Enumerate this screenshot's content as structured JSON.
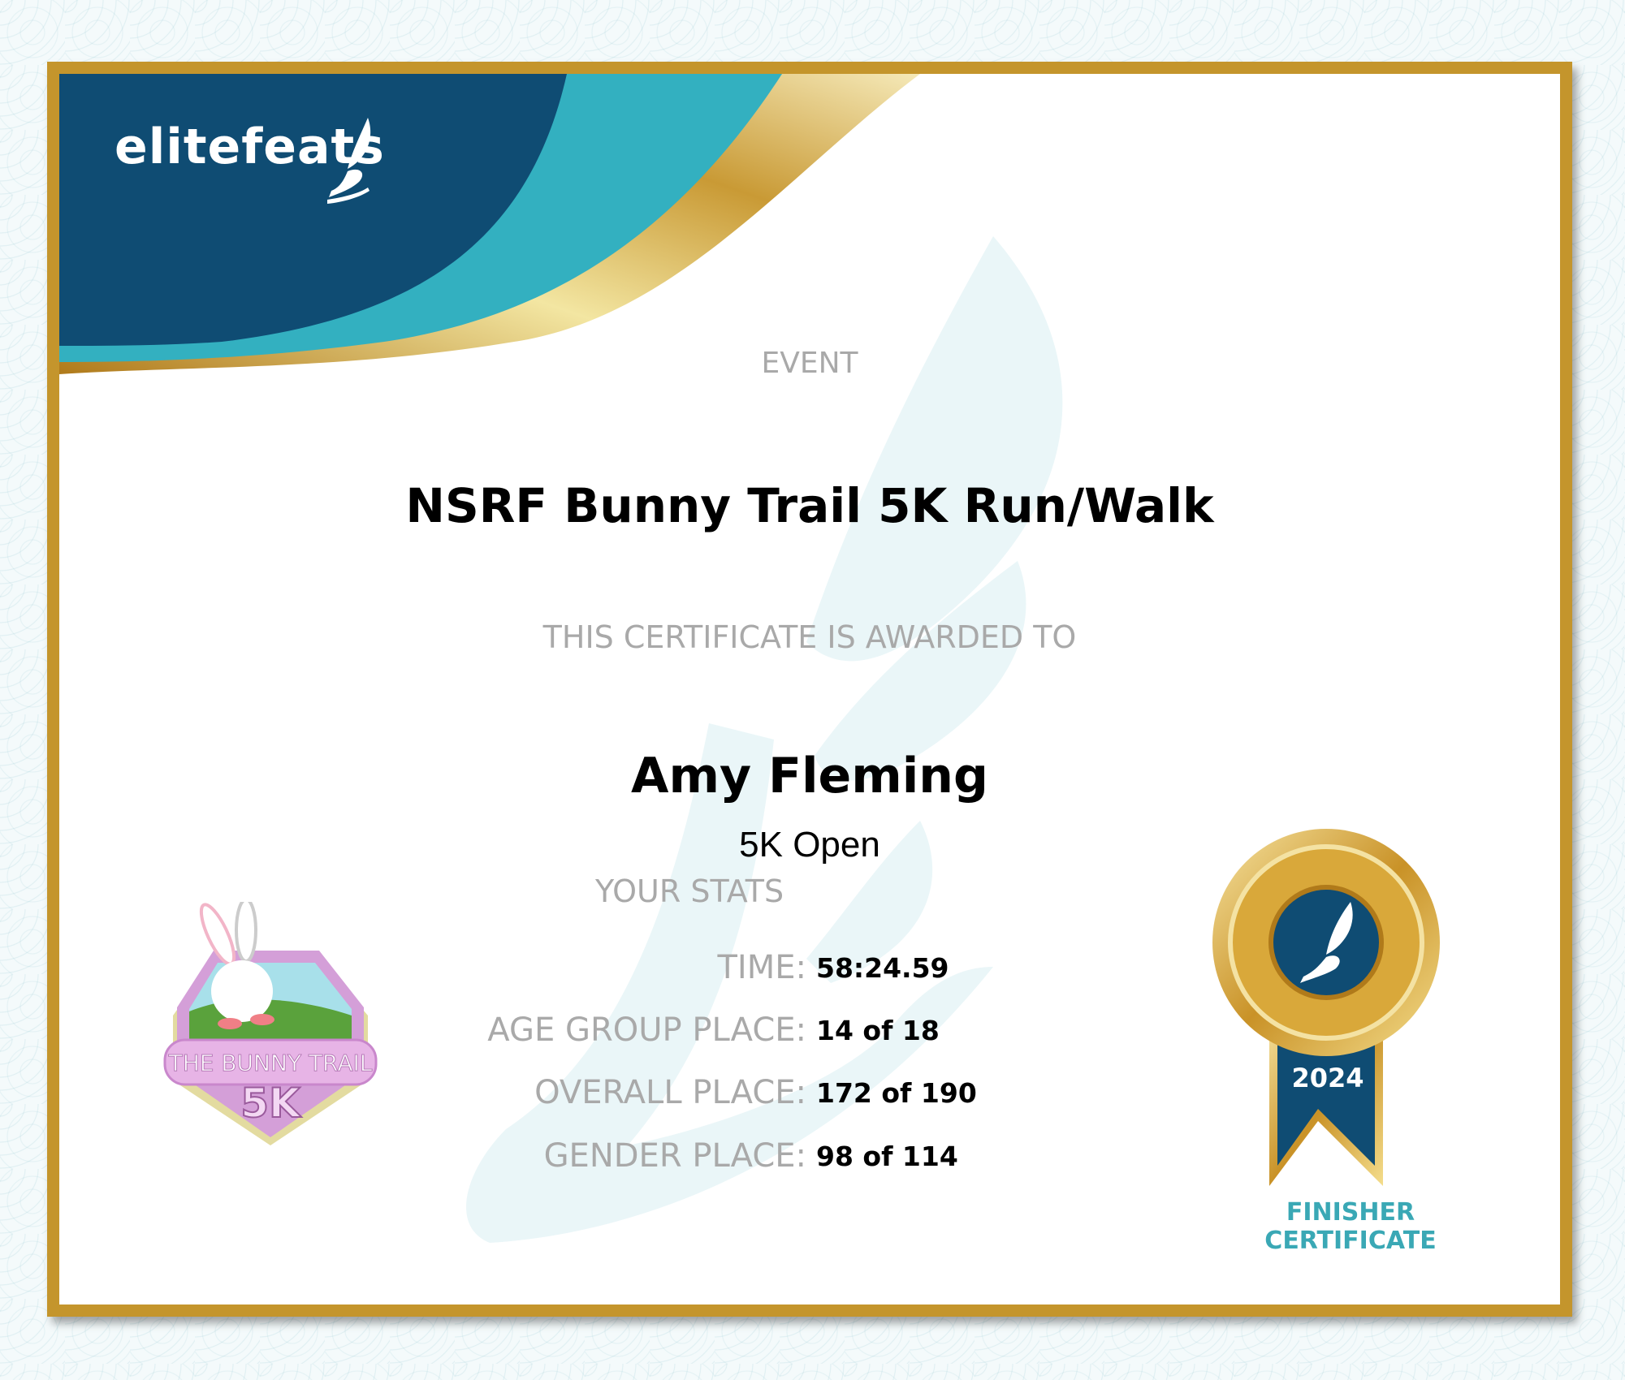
{
  "brand": {
    "logo_text": "elitefeats",
    "colors": {
      "navy": "#0f4c73",
      "teal": "#33b0c0",
      "gold": "#c4952c"
    }
  },
  "event": {
    "label": "EVENT",
    "title": "NSRF Bunny Trail 5K Run/Walk"
  },
  "award": {
    "label": "THIS CERTIFICATE IS AWARDED TO",
    "name": "Amy Fleming",
    "division": "5K Open"
  },
  "stats": {
    "label": "YOUR STATS",
    "rows": [
      {
        "label": "TIME:",
        "value": "58:24.59"
      },
      {
        "label": "AGE GROUP PLACE:",
        "value": "14 of 18"
      },
      {
        "label": "OVERALL PLACE:",
        "value": "172 of 190"
      },
      {
        "label": "GENDER PLACE:",
        "value": "98 of 114"
      }
    ]
  },
  "race_badge": {
    "line1": "THE BUNNY TRAIL",
    "line2": "5K"
  },
  "medal": {
    "year": "2024",
    "caption_line1": "FINISHER",
    "caption_line2": "CERTIFICATE"
  }
}
